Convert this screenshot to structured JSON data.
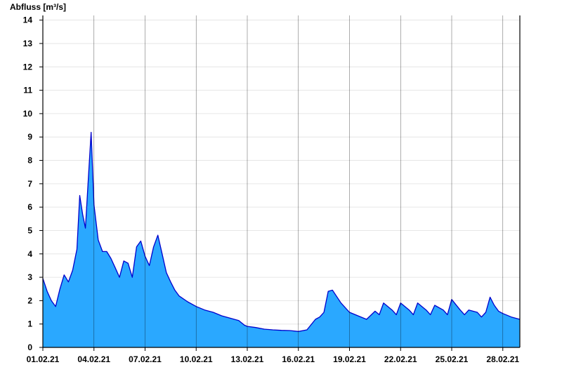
{
  "chart_data": {
    "type": "area",
    "title": "",
    "ylabel": "Abfluss [m³/s]",
    "xlabel": "",
    "ylim": [
      0,
      14.2
    ],
    "yticks": [
      0,
      1,
      2,
      3,
      4,
      5,
      6,
      7,
      8,
      9,
      10,
      11,
      12,
      13,
      14
    ],
    "xlim": [
      "01.02.21 00:00",
      "01.03.21 00:00"
    ],
    "xticks": [
      "01.02.21",
      "04.02.21",
      "07.02.21",
      "10.02.21",
      "13.02.21",
      "16.02.21",
      "19.02.21",
      "22.02.21",
      "25.02.21",
      "28.02.21"
    ],
    "grid": true,
    "colors": {
      "fill": "#2aa8ff",
      "line": "#0000cc",
      "grid": "#e6e6e6",
      "axis": "#000000"
    },
    "series": [
      {
        "x": [
          "01.02.21 00:00",
          "01.02.21 06:00",
          "01.02.21 12:00",
          "01.02.21 18:00",
          "02.02.21 00:00",
          "02.02.21 06:00",
          "02.02.21 12:00",
          "02.02.21 18:00",
          "03.02.21 00:00",
          "03.02.21 04:00",
          "03.02.21 08:00",
          "03.02.21 12:00",
          "03.02.21 16:00",
          "03.02.21 20:00",
          "04.02.21 00:00",
          "04.02.21 06:00",
          "04.02.21 12:00",
          "04.02.21 18:00",
          "05.02.21 00:00",
          "05.02.21 06:00",
          "05.02.21 12:00",
          "05.02.21 18:00",
          "06.02.21 00:00",
          "06.02.21 06:00",
          "06.02.21 12:00",
          "06.02.21 18:00",
          "07.02.21 00:00",
          "07.02.21 06:00",
          "07.02.21 12:00",
          "07.02.21 18:00",
          "08.02.21 00:00",
          "08.02.21 06:00",
          "08.02.21 12:00",
          "08.02.21 18:00",
          "09.02.21 00:00",
          "09.02.21 12:00",
          "10.02.21 00:00",
          "10.02.21 12:00",
          "11.02.21 00:00",
          "11.02.21 12:00",
          "12.02.21 00:00",
          "12.02.21 12:00",
          "12.02.21 20:00",
          "13.02.21 00:00",
          "13.02.21 12:00",
          "14.02.21 00:00",
          "14.02.21 12:00",
          "15.02.21 00:00",
          "15.02.21 12:00",
          "16.02.21 00:00",
          "16.02.21 12:00",
          "17.02.21 00:00",
          "17.02.21 06:00",
          "17.02.21 12:00",
          "17.02.21 18:00",
          "18.02.21 00:00",
          "18.02.21 12:00",
          "19.02.21 00:00",
          "19.02.21 12:00",
          "20.02.21 00:00",
          "20.02.21 12:00",
          "20.02.21 18:00",
          "21.02.21 00:00",
          "21.02.21 12:00",
          "21.02.21 18:00",
          "22.02.21 00:00",
          "22.02.21 12:00",
          "22.02.21 18:00",
          "23.02.21 00:00",
          "23.02.21 12:00",
          "23.02.21 18:00",
          "24.02.21 00:00",
          "24.02.21 12:00",
          "24.02.21 18:00",
          "25.02.21 00:00",
          "25.02.21 12:00",
          "25.02.21 18:00",
          "26.02.21 00:00",
          "26.02.21 12:00",
          "26.02.21 18:00",
          "27.02.21 00:00",
          "27.02.21 06:00",
          "27.02.21 12:00",
          "27.02.21 18:00",
          "28.02.21 00:00",
          "28.02.21 12:00",
          "01.03.21 00:00"
        ],
        "values": [
          2.95,
          2.4,
          2.0,
          1.75,
          2.5,
          3.1,
          2.8,
          3.3,
          4.2,
          6.5,
          5.7,
          5.1,
          7.2,
          9.2,
          6.1,
          4.6,
          4.1,
          4.1,
          3.8,
          3.4,
          3.0,
          3.7,
          3.6,
          3.0,
          4.3,
          4.55,
          3.9,
          3.5,
          4.3,
          4.8,
          4.0,
          3.2,
          2.8,
          2.45,
          2.2,
          1.95,
          1.75,
          1.6,
          1.5,
          1.35,
          1.25,
          1.15,
          0.95,
          0.9,
          0.85,
          0.78,
          0.75,
          0.73,
          0.72,
          0.68,
          0.75,
          1.2,
          1.3,
          1.5,
          2.4,
          2.45,
          1.9,
          1.5,
          1.35,
          1.2,
          1.55,
          1.4,
          1.9,
          1.6,
          1.4,
          1.9,
          1.6,
          1.4,
          1.9,
          1.6,
          1.4,
          1.8,
          1.6,
          1.4,
          2.05,
          1.6,
          1.4,
          1.6,
          1.5,
          1.3,
          1.5,
          2.15,
          1.8,
          1.55,
          1.45,
          1.3,
          1.2
        ]
      }
    ]
  }
}
